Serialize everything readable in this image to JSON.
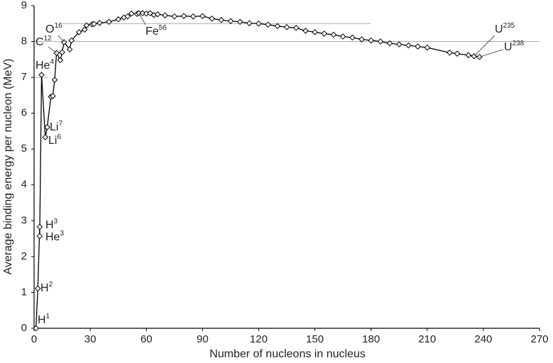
{
  "chart_data": {
    "type": "line",
    "xlabel": "Number of nucleons in nucleus",
    "ylabel": "Average binding energy per nucleon (MeV)",
    "xlim": [
      0,
      270
    ],
    "xticks": [
      0,
      30,
      60,
      90,
      120,
      150,
      180,
      210,
      240,
      270
    ],
    "ylim": [
      0,
      9
    ],
    "yticks": [
      0,
      1,
      2,
      3,
      4,
      5,
      6,
      7,
      8,
      9
    ],
    "reference_lines": [
      {
        "y": 8,
        "xlim": [
          0,
          270
        ]
      },
      {
        "y": 8.5,
        "xlim": [
          15,
          180
        ]
      },
      {
        "y": 7,
        "xlim": [
          0,
          7
        ]
      }
    ],
    "series": [
      {
        "color": "#000000",
        "x": [
          1,
          2,
          3,
          3,
          4,
          6,
          7,
          9,
          10,
          11,
          12,
          14,
          15,
          16,
          19,
          20,
          24,
          27,
          28,
          31,
          32,
          35,
          40,
          45,
          48,
          50,
          52,
          55,
          56,
          58,
          60,
          62,
          64,
          66,
          70,
          75,
          80,
          85,
          90,
          95,
          100,
          105,
          110,
          115,
          120,
          125,
          130,
          135,
          140,
          145,
          150,
          155,
          160,
          165,
          170,
          175,
          180,
          185,
          190,
          195,
          200,
          205,
          210,
          222,
          226,
          232,
          235,
          238
        ],
        "values": [
          0,
          1.11,
          2.83,
          2.57,
          7.07,
          5.33,
          5.61,
          6.46,
          6.48,
          6.93,
          7.68,
          7.48,
          7.7,
          7.98,
          7.78,
          8.03,
          8.26,
          8.33,
          8.45,
          8.48,
          8.49,
          8.52,
          8.55,
          8.62,
          8.67,
          8.7,
          8.78,
          8.77,
          8.79,
          8.79,
          8.78,
          8.79,
          8.74,
          8.76,
          8.73,
          8.7,
          8.71,
          8.7,
          8.71,
          8.64,
          8.6,
          8.57,
          8.55,
          8.51,
          8.5,
          8.47,
          8.43,
          8.4,
          8.38,
          8.3,
          8.26,
          8.22,
          8.19,
          8.14,
          8.11,
          8.06,
          8.03,
          8.0,
          7.95,
          7.92,
          7.89,
          7.86,
          7.83,
          7.69,
          7.66,
          7.62,
          7.59,
          7.57
        ]
      }
    ],
    "annotations": [
      {
        "text": "H",
        "sup": "1"
      },
      {
        "text": "H",
        "sup": "2"
      },
      {
        "text": "H",
        "sup": "3"
      },
      {
        "text": "He",
        "sup": "3"
      },
      {
        "text": "He",
        "sup": "4"
      },
      {
        "text": "Li",
        "sup": "7"
      },
      {
        "text": "Li",
        "sup": "6"
      },
      {
        "text": "C",
        "sup": "12"
      },
      {
        "text": "O",
        "sup": "16"
      },
      {
        "text": "Fe",
        "sup": "56"
      },
      {
        "text": "U",
        "sup": "235"
      },
      {
        "text": "U",
        "sup": "238"
      }
    ]
  }
}
